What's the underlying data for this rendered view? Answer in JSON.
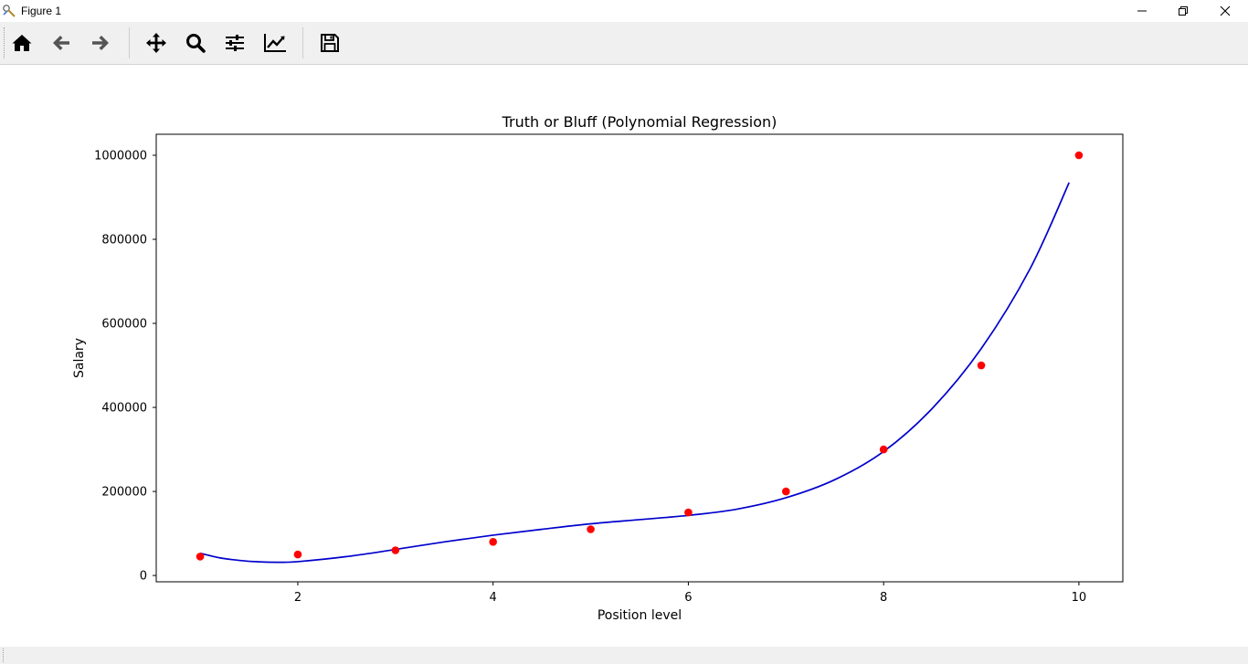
{
  "window": {
    "title": "Figure 1"
  },
  "toolbar": {
    "buttons": [
      {
        "name": "home",
        "icon": "home-icon"
      },
      {
        "name": "back",
        "icon": "arrow-left-icon"
      },
      {
        "name": "forward",
        "icon": "arrow-right-icon"
      },
      {
        "name": "pan",
        "icon": "move-icon"
      },
      {
        "name": "zoom",
        "icon": "search-icon"
      },
      {
        "name": "configure-subplots",
        "icon": "sliders-icon"
      },
      {
        "name": "edit-axis",
        "icon": "line-chart-icon"
      },
      {
        "name": "save",
        "icon": "floppy-disk-icon"
      }
    ]
  },
  "chart_data": {
    "type": "scatter",
    "title": "Truth or Bluff (Polynomial Regression)",
    "xlabel": "Position level",
    "ylabel": "Salary",
    "xlim": [
      0.55,
      10.45
    ],
    "ylim": [
      -15000,
      1050000
    ],
    "xticks": [
      2,
      4,
      6,
      8,
      10
    ],
    "yticks": [
      0,
      200000,
      400000,
      600000,
      800000,
      1000000
    ],
    "grid": false,
    "series": [
      {
        "kind": "scatter",
        "color": "#ff0000",
        "x": [
          1,
          2,
          3,
          4,
          5,
          6,
          7,
          8,
          9,
          10
        ],
        "y": [
          45000,
          50000,
          60000,
          80000,
          110000,
          150000,
          200000,
          300000,
          500000,
          1000000
        ]
      },
      {
        "kind": "line",
        "color": "#0000cc",
        "x": [
          1.0,
          1.2,
          1.4,
          1.6,
          1.8,
          2.0,
          2.5,
          3.0,
          3.5,
          4.0,
          4.5,
          5.0,
          5.5,
          6.0,
          6.5,
          7.0,
          7.5,
          8.0,
          8.5,
          9.0,
          9.5,
          9.9
        ],
        "y": [
          53000,
          42000,
          36000,
          32500,
          31500,
          33000,
          45000,
          62000,
          80000,
          96000,
          110000,
          123000,
          133000,
          143000,
          158000,
          185000,
          228000,
          295000,
          398000,
          540000,
          730000,
          935000
        ]
      }
    ]
  }
}
